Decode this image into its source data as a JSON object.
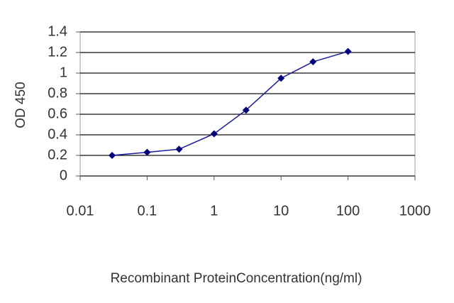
{
  "chart_data": {
    "type": "line",
    "x_label": "Recombinant ProteinConcentration(ng/ml)",
    "y_label": "OD 450",
    "x": [
      0.03,
      0.1,
      0.3,
      1,
      3,
      10,
      30,
      100
    ],
    "values": [
      0.2,
      0.23,
      0.26,
      0.41,
      0.64,
      0.95,
      1.11,
      1.21
    ],
    "color": "#1a1a9a",
    "marker_color": "#00007a",
    "xlim": [
      0.01,
      1000
    ],
    "xticks": [
      0.01,
      0.1,
      1,
      10,
      100,
      1000
    ],
    "xscale": "log",
    "ylim": [
      0,
      1.4
    ],
    "yticks": [
      0,
      0.2,
      0.4,
      0.6,
      0.8,
      1,
      1.2,
      1.4
    ],
    "grid": true
  }
}
